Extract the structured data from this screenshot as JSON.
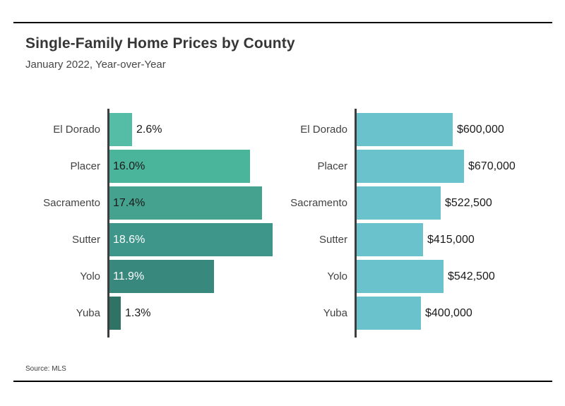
{
  "header": {
    "title": "Single-Family Home Prices by County",
    "subtitle": "January 2022, Year-over-Year"
  },
  "footer": {
    "source": "Source: MLS"
  },
  "colors": {
    "axis": "#3d3d3d",
    "rule": "#000000",
    "category_label": "#424242",
    "price_bar": "#6ac2cc"
  },
  "chart_data": [
    {
      "type": "bar",
      "orientation": "horizontal",
      "title": "Year-over-Year percent change",
      "categories": [
        "El Dorado",
        "Placer",
        "Sacramento",
        "Sutter",
        "Yolo",
        "Yuba"
      ],
      "values": [
        2.6,
        16.0,
        17.4,
        18.6,
        11.9,
        1.3
      ],
      "value_labels": [
        "2.6%",
        "16.0%",
        "17.4%",
        "18.6%",
        "11.9%",
        "1.3%"
      ],
      "xlim": [
        0,
        18.6
      ],
      "grid": false,
      "legend": false,
      "bar_colors": [
        "#55bda6",
        "#4bb59b",
        "#44a28f",
        "#3e9589",
        "#39887e",
        "#2f7365"
      ],
      "label_inside": [
        false,
        true,
        true,
        true,
        true,
        false
      ],
      "label_colors": [
        "#1a1a1a",
        "#1a1a1a",
        "#1a1a1a",
        "#ffffff",
        "#ffffff",
        "#1a1a1a"
      ]
    },
    {
      "type": "bar",
      "orientation": "horizontal",
      "title": "Median price",
      "categories": [
        "El Dorado",
        "Placer",
        "Sacramento",
        "Sutter",
        "Yolo",
        "Yuba"
      ],
      "values": [
        600000,
        670000,
        522500,
        415000,
        542500,
        400000
      ],
      "value_labels": [
        "$600,000",
        "$670,000",
        "$522,500",
        "$415,000",
        "$542,500",
        "$400,000"
      ],
      "xlim": [
        0,
        670000
      ],
      "grid": false,
      "legend": false,
      "bar_colors": [
        "#6ac2cc",
        "#6ac2cc",
        "#6ac2cc",
        "#6ac2cc",
        "#6ac2cc",
        "#6ac2cc"
      ],
      "label_inside": [
        false,
        false,
        false,
        false,
        false,
        false
      ],
      "label_colors": [
        "#1a1a1a",
        "#1a1a1a",
        "#1a1a1a",
        "#1a1a1a",
        "#1a1a1a",
        "#1a1a1a"
      ]
    }
  ]
}
